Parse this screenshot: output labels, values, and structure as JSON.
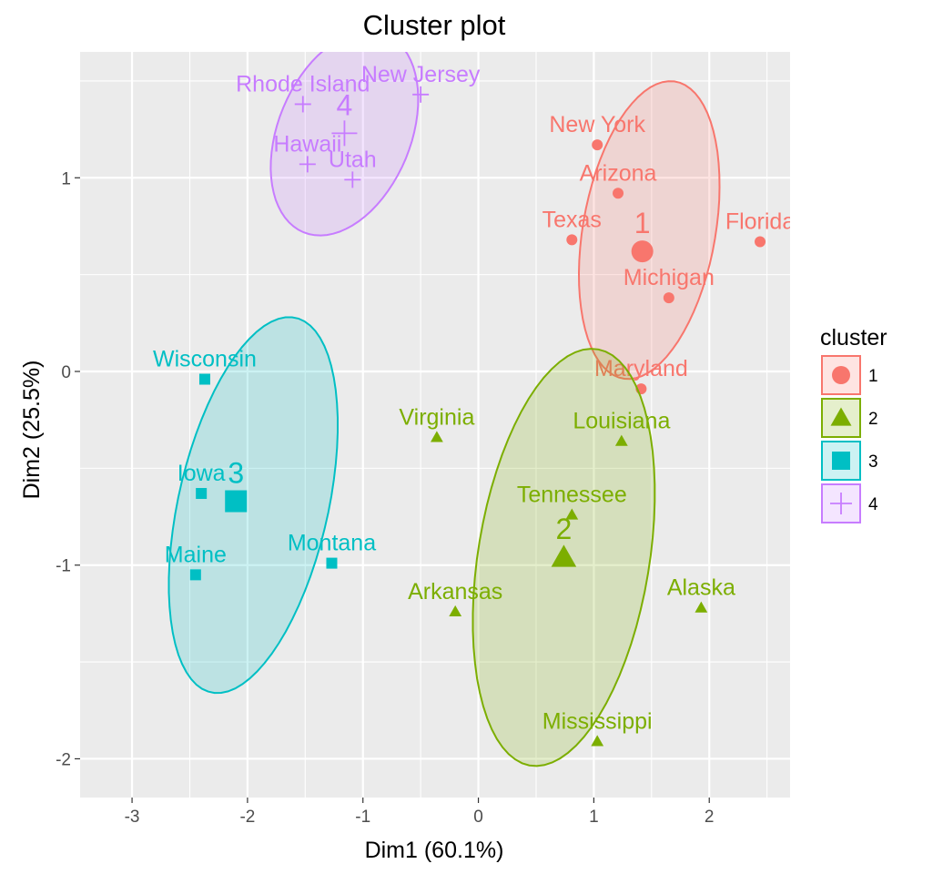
{
  "chart_data": {
    "type": "scatter",
    "title": "Cluster plot",
    "xlabel": "Dim1 (60.1%)",
    "ylabel": "Dim2 (25.5%)",
    "xlim": [
      -3.45,
      2.7
    ],
    "ylim": [
      -2.2,
      1.65
    ],
    "x_ticks": [
      -3,
      -2,
      -1,
      0,
      1,
      2
    ],
    "y_ticks": [
      -2,
      -1,
      0,
      1
    ],
    "grid": true,
    "legend": {
      "title": "cluster",
      "position": "right"
    },
    "clusters": [
      {
        "id": "1",
        "color": "#F8766D",
        "shape": "circle",
        "center": {
          "label": "1",
          "x": 1.42,
          "y": 0.62
        },
        "ellipse": {
          "cx": 1.48,
          "cy": 0.73,
          "rx": 1.3,
          "ry": 0.88,
          "angle_deg": -64
        },
        "points": [
          {
            "label": "New York",
            "x": 1.03,
            "y": 1.17
          },
          {
            "label": "Arizona",
            "x": 1.21,
            "y": 0.92
          },
          {
            "label": "Texas",
            "x": 0.81,
            "y": 0.68
          },
          {
            "label": "Florida",
            "x": 2.44,
            "y": 0.67
          },
          {
            "label": "Michigan",
            "x": 1.65,
            "y": 0.38
          },
          {
            "label": "Maryland",
            "x": 1.41,
            "y": -0.09
          }
        ]
      },
      {
        "id": "2",
        "color": "#7CAE00",
        "shape": "triangle",
        "center": {
          "label": "2",
          "x": 0.74,
          "y": -0.96
        },
        "ellipse": {
          "cx": 0.74,
          "cy": -0.96,
          "rx": 1.8,
          "ry": 1.15,
          "angle_deg": -68
        },
        "points": [
          {
            "label": "Virginia",
            "x": -0.36,
            "y": -0.34
          },
          {
            "label": "Louisiana",
            "x": 1.24,
            "y": -0.36
          },
          {
            "label": "Tennessee",
            "x": 0.81,
            "y": -0.74
          },
          {
            "label": "Arkansas",
            "x": -0.2,
            "y": -1.24
          },
          {
            "label": "Alaska",
            "x": 1.93,
            "y": -1.22
          },
          {
            "label": "Mississippi",
            "x": 1.03,
            "y": -1.91
          }
        ]
      },
      {
        "id": "3",
        "color": "#00BFC4",
        "shape": "square",
        "center": {
          "label": "3",
          "x": -2.1,
          "y": -0.67
        },
        "ellipse": {
          "cx": -1.95,
          "cy": -0.69,
          "rx": 1.68,
          "ry": 0.98,
          "angle_deg": -62
        },
        "points": [
          {
            "label": "Wisconsin",
            "x": -2.37,
            "y": -0.04
          },
          {
            "label": "Iowa",
            "x": -2.4,
            "y": -0.63
          },
          {
            "label": "Maine",
            "x": -2.45,
            "y": -1.05
          },
          {
            "label": "Montana",
            "x": -1.27,
            "y": -0.99
          }
        ]
      },
      {
        "id": "4",
        "color": "#C77CFF",
        "shape": "cross",
        "center": {
          "label": "4",
          "x": -1.16,
          "y": 1.23
        },
        "ellipse": {
          "cx": -1.16,
          "cy": 1.23,
          "rx": 1.1,
          "ry": 0.74,
          "angle_deg": -30
        },
        "points": [
          {
            "label": "Rhode Island",
            "x": -1.52,
            "y": 1.38
          },
          {
            "label": "New Jersey",
            "x": -0.5,
            "y": 1.43
          },
          {
            "label": "Hawaii",
            "x": -1.48,
            "y": 1.07
          },
          {
            "label": "Utah",
            "x": -1.09,
            "y": 0.99
          }
        ]
      }
    ]
  }
}
